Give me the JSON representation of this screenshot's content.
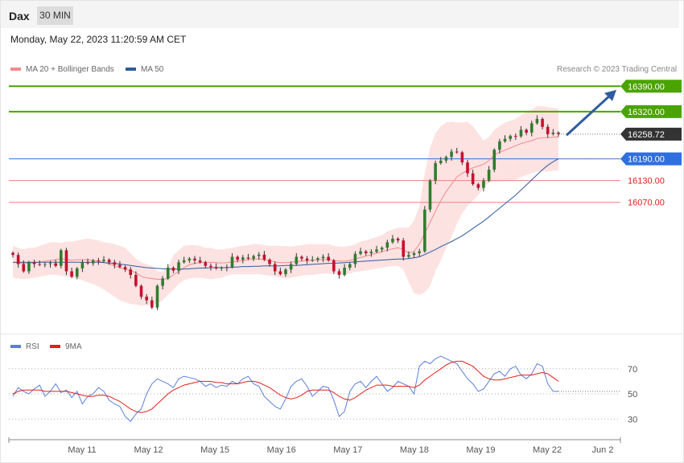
{
  "header": {
    "ticker": "Dax",
    "timeframe": "30 MIN"
  },
  "datetime": "Monday, May 22, 2023 11:20:59 AM CET",
  "legend_top": [
    {
      "label": "MA 20 + Bollinger Bands",
      "color": "#f28b8b"
    },
    {
      "label": "MA 50",
      "color": "#2f5c9e"
    }
  ],
  "copyright": "Research © 2023 Trading Central",
  "legend_rsi": [
    {
      "label": "RSI",
      "color": "#5b7fd6"
    },
    {
      "label": "9MA",
      "color": "#e0201b"
    }
  ],
  "colors": {
    "resistance": "#4aa400",
    "support_ma": "#2f6fe0",
    "support": "#f08080",
    "last": "#333333",
    "candle_up": "#2f7d2f",
    "candle_down": "#c8102e",
    "bollinger_fill": "#fde2e2",
    "arrow": "#2f5c9e"
  },
  "chart_data": [
    {
      "type": "candlestick",
      "x_labels": [
        "May 11",
        "May 12",
        "May 15",
        "May 16",
        "May 17",
        "May 18",
        "May 19",
        "May 22",
        "Jun 2"
      ],
      "ylim": [
        15715,
        16415
      ],
      "last_price": "16258.72",
      "levels": [
        {
          "value": 16390,
          "label": "16390.00",
          "kind": "resistance"
        },
        {
          "value": 16320,
          "label": "16320.00",
          "kind": "resistance"
        },
        {
          "value": 16190,
          "label": "16190.00",
          "kind": "pivot"
        },
        {
          "value": 16130,
          "label": "16130.00",
          "kind": "support"
        },
        {
          "value": 16070,
          "label": "16070.00",
          "kind": "support"
        }
      ],
      "closes": [
        15925,
        15900,
        15880,
        15905,
        15900,
        15898,
        15900,
        15902,
        15895,
        15938,
        15880,
        15865,
        15888,
        15905,
        15902,
        15910,
        15908,
        15912,
        15905,
        15898,
        15892,
        15885,
        15870,
        15840,
        15810,
        15800,
        15780,
        15840,
        15860,
        15890,
        15882,
        15905,
        15910,
        15915,
        15910,
        15905,
        15895,
        15892,
        15888,
        15890,
        15892,
        15920,
        15912,
        15918,
        15915,
        15922,
        15926,
        15912,
        15900,
        15880,
        15872,
        15885,
        15900,
        15920,
        15915,
        15910,
        15912,
        15916,
        15920,
        15910,
        15880,
        15870,
        15890,
        15900,
        15928,
        15935,
        15930,
        15934,
        15940,
        15945,
        15960,
        15970,
        15965,
        15920,
        15925,
        15930,
        15935,
        16050,
        16130,
        16178,
        16185,
        16195,
        16210,
        16208,
        16180,
        16150,
        16120,
        16110,
        16130,
        16160,
        16215,
        16238,
        16245,
        16253,
        16252,
        16270,
        16262,
        16288,
        16300,
        16278,
        16258,
        16262,
        16258
      ],
      "bollinger_upper": [
        15950,
        15945,
        15940,
        15945,
        15945,
        15950,
        15955,
        15960,
        15960,
        15958,
        15962,
        15962,
        15965,
        15968,
        15970,
        15968,
        15965,
        15960,
        15958,
        15955,
        15950,
        15945,
        15930,
        15915,
        15905,
        15900,
        15895,
        15880,
        15878,
        15890,
        15925,
        15938,
        15950,
        15952,
        15952,
        15950,
        15945,
        15945,
        15940,
        15940,
        15942,
        15945,
        15948,
        15950,
        15952,
        15955,
        15955,
        15952,
        15950,
        15950,
        15950,
        15950,
        15948,
        15950,
        15952,
        15955,
        15955,
        15955,
        15955,
        15955,
        15950,
        15948,
        15948,
        15950,
        15955,
        15962,
        15965,
        15970,
        15975,
        15980,
        15990,
        15995,
        16000,
        16000,
        16000,
        16020,
        16060,
        16150,
        16220,
        16260,
        16280,
        16290,
        16292,
        16290,
        16290,
        16292,
        16280,
        16260,
        16240,
        16250,
        16270,
        16280,
        16290,
        16295,
        16300,
        16310,
        16320,
        16325,
        16335,
        16335,
        16332,
        16330,
        16328
      ],
      "bollinger_lower": [
        15862,
        15860,
        15858,
        15860,
        15862,
        15865,
        15868,
        15870,
        15870,
        15868,
        15865,
        15862,
        15860,
        15855,
        15850,
        15845,
        15838,
        15830,
        15820,
        15810,
        15800,
        15795,
        15790,
        15788,
        15785,
        15786,
        15788,
        15790,
        15800,
        15815,
        15830,
        15845,
        15855,
        15860,
        15862,
        15862,
        15860,
        15858,
        15860,
        15862,
        15868,
        15872,
        15872,
        15872,
        15872,
        15872,
        15872,
        15870,
        15868,
        15865,
        15862,
        15860,
        15862,
        15865,
        15868,
        15870,
        15870,
        15872,
        15874,
        15874,
        15872,
        15872,
        15872,
        15874,
        15878,
        15880,
        15882,
        15885,
        15888,
        15890,
        15892,
        15895,
        15895,
        15885,
        15850,
        15820,
        15815,
        15822,
        15840,
        15880,
        15910,
        15945,
        15975,
        16010,
        16040,
        16060,
        16075,
        16090,
        16110,
        16125,
        16128,
        16128,
        16129,
        16130,
        16132,
        16140,
        16145,
        16150,
        16155,
        16155,
        16155,
        16157,
        16158
      ],
      "ma20": [
        15905,
        15903,
        15902,
        15903,
        15903,
        15905,
        15908,
        15910,
        15912,
        15915,
        15913,
        15910,
        15912,
        15912,
        15912,
        15910,
        15908,
        15905,
        15900,
        15895,
        15890,
        15886,
        15882,
        15876,
        15866,
        15862,
        15860,
        15858,
        15858,
        15860,
        15870,
        15880,
        15890,
        15898,
        15902,
        15904,
        15905,
        15905,
        15904,
        15903,
        15904,
        15906,
        15908,
        15910,
        15912,
        15914,
        15914,
        15912,
        15910,
        15906,
        15904,
        15904,
        15905,
        15907,
        15908,
        15909,
        15910,
        15912,
        15912,
        15912,
        15910,
        15908,
        15908,
        15910,
        15914,
        15918,
        15922,
        15926,
        15930,
        15934,
        15938,
        15942,
        15945,
        15940,
        15930,
        15935,
        15955,
        15985,
        16015,
        16045,
        16075,
        16100,
        16120,
        16140,
        16150,
        16158,
        16165,
        16170,
        16175,
        16185,
        16200,
        16208,
        16214,
        16220,
        16226,
        16232,
        16236,
        16240,
        16246,
        16248,
        16248,
        16250,
        16250
      ],
      "ma50": [
        15905,
        15905,
        15905,
        15905,
        15905,
        15905,
        15905,
        15905,
        15905,
        15905,
        15905,
        15905,
        15905,
        15905,
        15905,
        15905,
        15905,
        15904,
        15903,
        15902,
        15900,
        15898,
        15896,
        15894,
        15892,
        15890,
        15889,
        15888,
        15887,
        15886,
        15886,
        15886,
        15886,
        15887,
        15888,
        15889,
        15889,
        15890,
        15890,
        15890,
        15890,
        15891,
        15892,
        15893,
        15893,
        15894,
        15894,
        15895,
        15895,
        15895,
        15895,
        15896,
        15896,
        15896,
        15897,
        15898,
        15899,
        15900,
        15901,
        15902,
        15902,
        15903,
        15904,
        15905,
        15906,
        15907,
        15908,
        15909,
        15910,
        15911,
        15912,
        15913,
        15914,
        15914,
        15915,
        15917,
        15920,
        15926,
        15933,
        15940,
        15948,
        15955,
        15962,
        15970,
        15978,
        15988,
        15998,
        16008,
        16018,
        16030,
        16042,
        16054,
        16066,
        16078,
        16090,
        16104,
        16118,
        16132,
        16146,
        16160,
        16172,
        16182,
        16190
      ],
      "projection_arrow": {
        "from": 16255,
        "to": 16380
      }
    },
    {
      "type": "line",
      "name": "RSI",
      "ylim": [
        18,
        82
      ],
      "yticks": [
        30,
        50,
        70
      ],
      "series": [
        {
          "name": "RSI",
          "values": [
            48,
            55,
            52,
            50,
            54,
            57,
            48,
            52,
            58,
            51,
            53,
            47,
            52,
            42,
            48,
            50,
            55,
            52,
            45,
            42,
            40,
            32,
            28,
            34,
            38,
            50,
            58,
            62,
            60,
            58,
            55,
            62,
            64,
            63,
            62,
            60,
            56,
            58,
            55,
            57,
            56,
            60,
            58,
            62,
            64,
            58,
            56,
            48,
            44,
            40,
            38,
            46,
            56,
            60,
            62,
            56,
            48,
            52,
            56,
            55,
            45,
            32,
            36,
            52,
            58,
            60,
            55,
            60,
            64,
            58,
            52,
            55,
            60,
            58,
            56,
            50,
            72,
            76,
            74,
            78,
            80,
            78,
            76,
            74,
            68,
            62,
            58,
            52,
            54,
            60,
            66,
            68,
            64,
            70,
            72,
            65,
            62,
            66,
            74,
            72,
            58,
            52,
            52
          ]
        },
        {
          "name": "9MA",
          "values": [
            50,
            52,
            53,
            53,
            53,
            53,
            52,
            52,
            52,
            52,
            52,
            51,
            50,
            49,
            48,
            48,
            49,
            49,
            48,
            46,
            44,
            41,
            38,
            36,
            35,
            36,
            38,
            42,
            46,
            50,
            53,
            55,
            57,
            58,
            59,
            60,
            60,
            60,
            59,
            59,
            58,
            58,
            58,
            59,
            60,
            60,
            59,
            57,
            55,
            52,
            49,
            47,
            46,
            47,
            49,
            52,
            53,
            53,
            53,
            53,
            51,
            48,
            46,
            45,
            47,
            50,
            53,
            55,
            57,
            57,
            57,
            56,
            56,
            56,
            56,
            55,
            57,
            61,
            64,
            67,
            70,
            73,
            75,
            76,
            76,
            74,
            72,
            68,
            64,
            62,
            61,
            61,
            62,
            63,
            64,
            65,
            65,
            65,
            66,
            67,
            66,
            63,
            60
          ]
        }
      ]
    }
  ]
}
